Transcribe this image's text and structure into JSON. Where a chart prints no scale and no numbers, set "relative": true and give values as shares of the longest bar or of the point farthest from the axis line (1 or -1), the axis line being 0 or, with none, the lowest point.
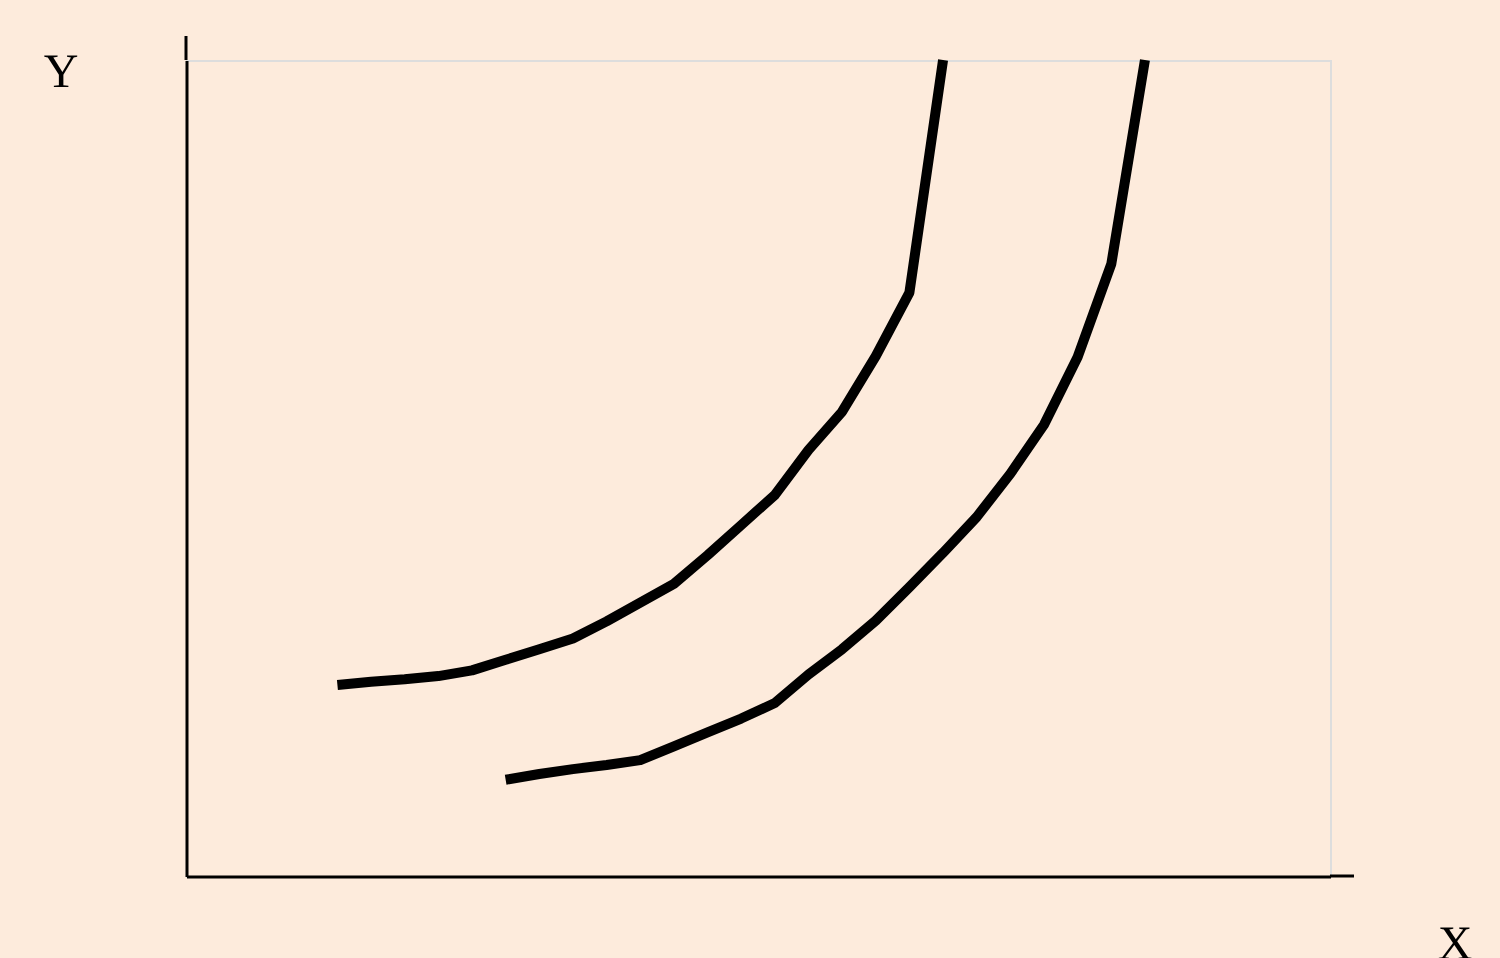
{
  "chart_data": {
    "type": "line",
    "relative": true,
    "xlabel": "X",
    "ylabel": "Y",
    "grid": false,
    "legend": false,
    "marker": "none",
    "line_style": "solid",
    "categories": [
      null,
      null,
      null,
      null,
      null,
      null,
      null,
      null,
      null,
      null,
      null,
      null,
      null,
      null,
      null,
      null,
      null,
      null,
      null,
      null,
      null,
      null,
      null,
      null,
      null,
      null,
      null,
      null,
      null,
      null,
      null,
      null,
      null,
      null
    ],
    "series": [
      {
        "color": "#000000",
        "values": [
          null,
          null,
          null,
          null,
          0.234,
          0.238,
          0.241,
          0.245,
          0.252,
          0.265,
          0.278,
          0.291,
          0.312,
          0.335,
          0.358,
          0.393,
          0.43,
          0.467,
          0.522,
          0.569,
          0.637,
          0.715,
          1,
          null,
          null,
          null,
          null,
          null,
          null,
          null,
          null,
          null,
          null,
          null
        ]
      },
      {
        "color": "#000000",
        "values": [
          null,
          null,
          null,
          null,
          null,
          null,
          null,
          null,
          null,
          0.118,
          0.125,
          0.131,
          0.136,
          0.142,
          0.159,
          0.176,
          0.193,
          0.212,
          0.247,
          0.278,
          0.313,
          0.354,
          0.396,
          0.44,
          0.493,
          0.553,
          0.636,
          0.75,
          1,
          null,
          null,
          null,
          null,
          null
        ]
      }
    ]
  }
}
